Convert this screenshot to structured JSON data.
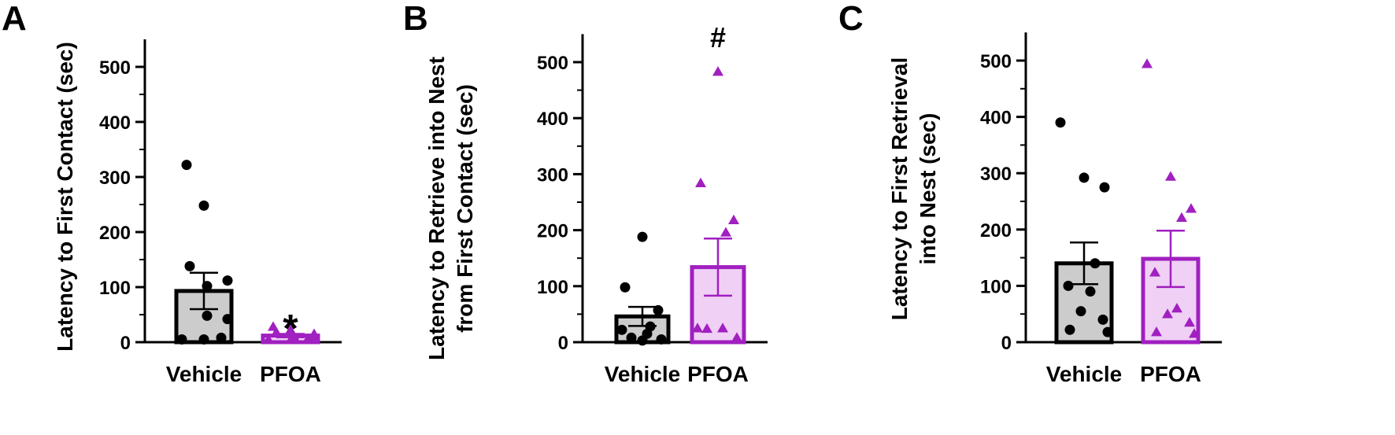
{
  "panels": [
    {
      "letter": "A",
      "ylabel": [
        "Latency to First Contact (sec)"
      ],
      "significance": "*",
      "significance_on": "PFOA"
    },
    {
      "letter": "B",
      "ylabel": [
        "Latency to Retrieve into Nest",
        "from First Contact (sec)"
      ],
      "significance": "#",
      "significance_on": "PFOA"
    },
    {
      "letter": "C",
      "ylabel": [
        "Latency to First Retrieval",
        "into Nest (sec)"
      ],
      "significance": "",
      "significance_on": ""
    }
  ],
  "colors": {
    "vehicle_fill": "#cccccc",
    "vehicle_edge": "#000000",
    "pfoa_fill": "#f0d0f5",
    "pfoa_edge": "#a020c0"
  },
  "chart_data": [
    {
      "type": "bar",
      "title": "",
      "categories": [
        "Vehicle",
        "PFOA"
      ],
      "ylabel": "Latency to First Contact (sec)",
      "ylim": [
        0,
        550
      ],
      "yticks": [
        0,
        100,
        200,
        300,
        400,
        500
      ],
      "means": [
        93,
        12
      ],
      "sem": [
        33,
        3
      ],
      "points": [
        [
          322,
          248,
          138,
          112,
          102,
          48,
          42,
          8,
          5,
          5
        ],
        [
          28,
          22,
          18,
          15,
          12,
          10,
          8,
          6,
          5,
          4
        ]
      ],
      "markers": [
        "circle",
        "triangle"
      ]
    },
    {
      "type": "bar",
      "title": "",
      "categories": [
        "Vehicle",
        "PFOA"
      ],
      "ylabel": "Latency to Retrieve into Nest from First Contact (sec)",
      "ylim": [
        0,
        550
      ],
      "yticks": [
        0,
        100,
        200,
        300,
        400,
        500
      ],
      "means": [
        46,
        134
      ],
      "sem": [
        17,
        51
      ],
      "points": [
        [
          188,
          98,
          57,
          28,
          22,
          15,
          8,
          5,
          3
        ],
        [
          483,
          284,
          218,
          196,
          25,
          25,
          24,
          8
        ]
      ],
      "markers": [
        "circle",
        "triangle"
      ]
    },
    {
      "type": "bar",
      "title": "",
      "categories": [
        "Vehicle",
        "PFOA"
      ],
      "ylabel": "Latency to First Retrieval into Nest (sec)",
      "ylim": [
        0,
        550
      ],
      "yticks": [
        0,
        100,
        200,
        300,
        400,
        500
      ],
      "means": [
        140,
        148
      ],
      "sem": [
        37,
        50
      ],
      "points": [
        [
          390,
          292,
          275,
          140,
          100,
          90,
          55,
          40,
          22,
          18
        ],
        [
          494,
          294,
          237,
          221,
          124,
          60,
          50,
          35,
          18,
          15
        ]
      ],
      "markers": [
        "circle",
        "triangle"
      ]
    }
  ]
}
